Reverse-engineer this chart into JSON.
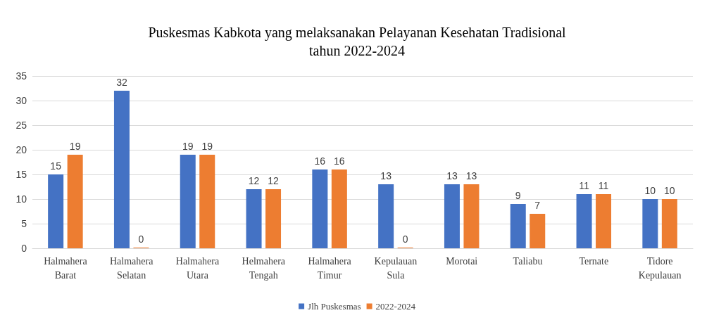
{
  "chart_data": {
    "type": "bar",
    "title": "Puskesmas Kabkota yang melaksanakan Pelayanan Kesehatan Tradisional\ntahun 2022-2024",
    "categories": [
      "Halmahera\nBarat",
      "Halmahera\nSelatan",
      "Halmahera\nUtara",
      "Helmahera\nTengah",
      "Halmahera\nTimur",
      "Kepulauan\nSula",
      "Morotai",
      "Taliabu",
      "Ternate",
      "Tidore\nKepulauan"
    ],
    "series": [
      {
        "name": "Jlh Puskesmas",
        "color": "#4472c4",
        "values": [
          15,
          32,
          19,
          12,
          16,
          13,
          13,
          9,
          11,
          10
        ]
      },
      {
        "name": "2022-2024",
        "color": "#ed7d31",
        "values": [
          19,
          0,
          19,
          12,
          16,
          0,
          13,
          7,
          11,
          10
        ]
      }
    ],
    "ylim": [
      0,
      35
    ],
    "yticks": [
      0,
      5,
      10,
      15,
      20,
      25,
      30,
      35
    ],
    "grid": "y",
    "legend": "bottom",
    "data_labels": true
  }
}
